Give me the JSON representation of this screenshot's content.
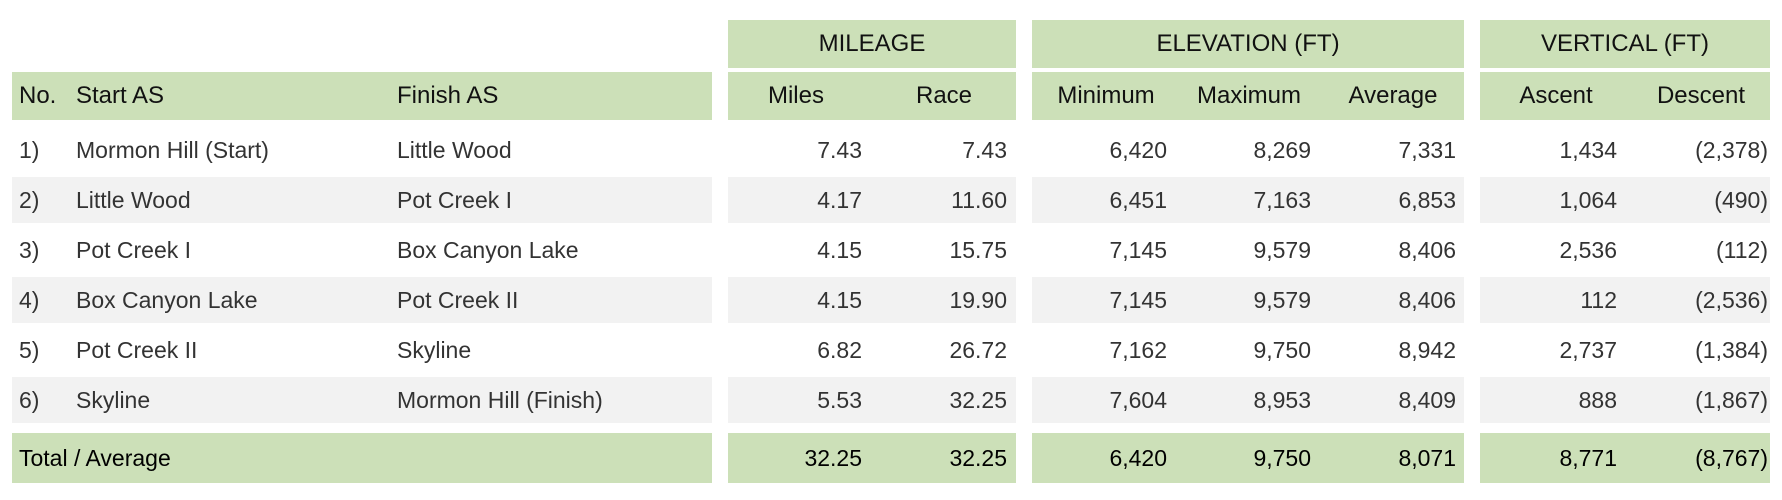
{
  "groups": {
    "mileage": "MILEAGE",
    "elevation": "ELEVATION (FT)",
    "vertical": "VERTICAL (FT)"
  },
  "columns": {
    "no": "No.",
    "start": "Start AS",
    "finish": "Finish AS",
    "miles": "Miles",
    "race": "Race",
    "minimum": "Minimum",
    "maximum": "Maximum",
    "average": "Average",
    "ascent": "Ascent",
    "descent": "Descent"
  },
  "rows": [
    {
      "no": "1)",
      "start": "Mormon Hill (Start)",
      "finish": "Little Wood",
      "miles": "7.43",
      "race": "7.43",
      "minimum": "6,420",
      "maximum": "8,269",
      "average": "7,331",
      "ascent": "1,434",
      "descent": "(2,378)"
    },
    {
      "no": "2)",
      "start": "Little Wood",
      "finish": "Pot Creek I",
      "miles": "4.17",
      "race": "11.60",
      "minimum": "6,451",
      "maximum": "7,163",
      "average": "6,853",
      "ascent": "1,064",
      "descent": "(490)"
    },
    {
      "no": "3)",
      "start": "Pot Creek I",
      "finish": "Box Canyon Lake",
      "miles": "4.15",
      "race": "15.75",
      "minimum": "7,145",
      "maximum": "9,579",
      "average": "8,406",
      "ascent": "2,536",
      "descent": "(112)"
    },
    {
      "no": "4)",
      "start": "Box Canyon Lake",
      "finish": "Pot Creek II",
      "miles": "4.15",
      "race": "19.90",
      "minimum": "7,145",
      "maximum": "9,579",
      "average": "8,406",
      "ascent": "112",
      "descent": "(2,536)"
    },
    {
      "no": "5)",
      "start": "Pot Creek II",
      "finish": "Skyline",
      "miles": "6.82",
      "race": "26.72",
      "minimum": "7,162",
      "maximum": "9,750",
      "average": "8,942",
      "ascent": "2,737",
      "descent": "(1,384)"
    },
    {
      "no": "6)",
      "start": "Skyline",
      "finish": "Mormon Hill (Finish)",
      "miles": "5.53",
      "race": "32.25",
      "minimum": "7,604",
      "maximum": "8,953",
      "average": "8,409",
      "ascent": "888",
      "descent": "(1,867)"
    }
  ],
  "total": {
    "label": "Total / Average",
    "miles": "32.25",
    "race": "32.25",
    "minimum": "6,420",
    "maximum": "9,750",
    "average": "8,071",
    "ascent": "8,771",
    "descent": "(8,767)"
  },
  "colors": {
    "header_green": "#cce0b8",
    "stripe_gray": "#f2f2f2"
  }
}
